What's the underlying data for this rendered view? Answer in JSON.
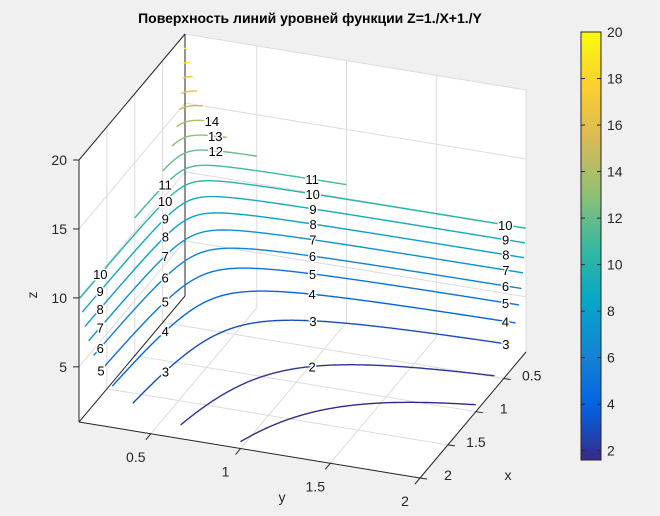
{
  "figure": {
    "title": "Поверхность линий уровней функции Z=1./X+1./Y"
  },
  "chart_data": {
    "type": "contour3",
    "function": "Z=1./X+1./Y",
    "title": "Поверхность линий уровней функции Z=1./X+1./Y",
    "xlabel": "x",
    "ylabel": "y",
    "zlabel": "z",
    "xlim": [
      0.1,
      2
    ],
    "ylim": [
      0.1,
      2
    ],
    "zlim": [
      1,
      20
    ],
    "xticks": [
      "0.5",
      "1",
      "1.5",
      "2"
    ],
    "yticks": [
      "0.5",
      "1",
      "1.5",
      "2"
    ],
    "zticks": [
      "5",
      "10",
      "15",
      "20"
    ],
    "levels": [
      1.5,
      2,
      3,
      4,
      5,
      6,
      7,
      8,
      9,
      10,
      11,
      12,
      13,
      14,
      15,
      16,
      17,
      18,
      19
    ],
    "contour_labels": {
      "left": [
        10,
        9,
        8,
        7,
        6,
        5
      ],
      "middle": [
        11,
        10,
        9,
        8,
        7,
        6,
        5,
        4,
        3
      ],
      "top": [
        14,
        13,
        12
      ],
      "center": [
        11,
        10,
        9,
        8,
        7,
        6,
        5,
        4,
        3,
        2
      ],
      "right": [
        10,
        9,
        8,
        7,
        6,
        5,
        4,
        3
      ]
    },
    "grid": true,
    "colormap": "parula",
    "colorbar": {
      "location": "right",
      "limits": [
        1.6,
        20
      ],
      "ticks": [
        "2",
        "4",
        "6",
        "8",
        "10",
        "12",
        "14",
        "16",
        "18",
        "20"
      ]
    }
  }
}
